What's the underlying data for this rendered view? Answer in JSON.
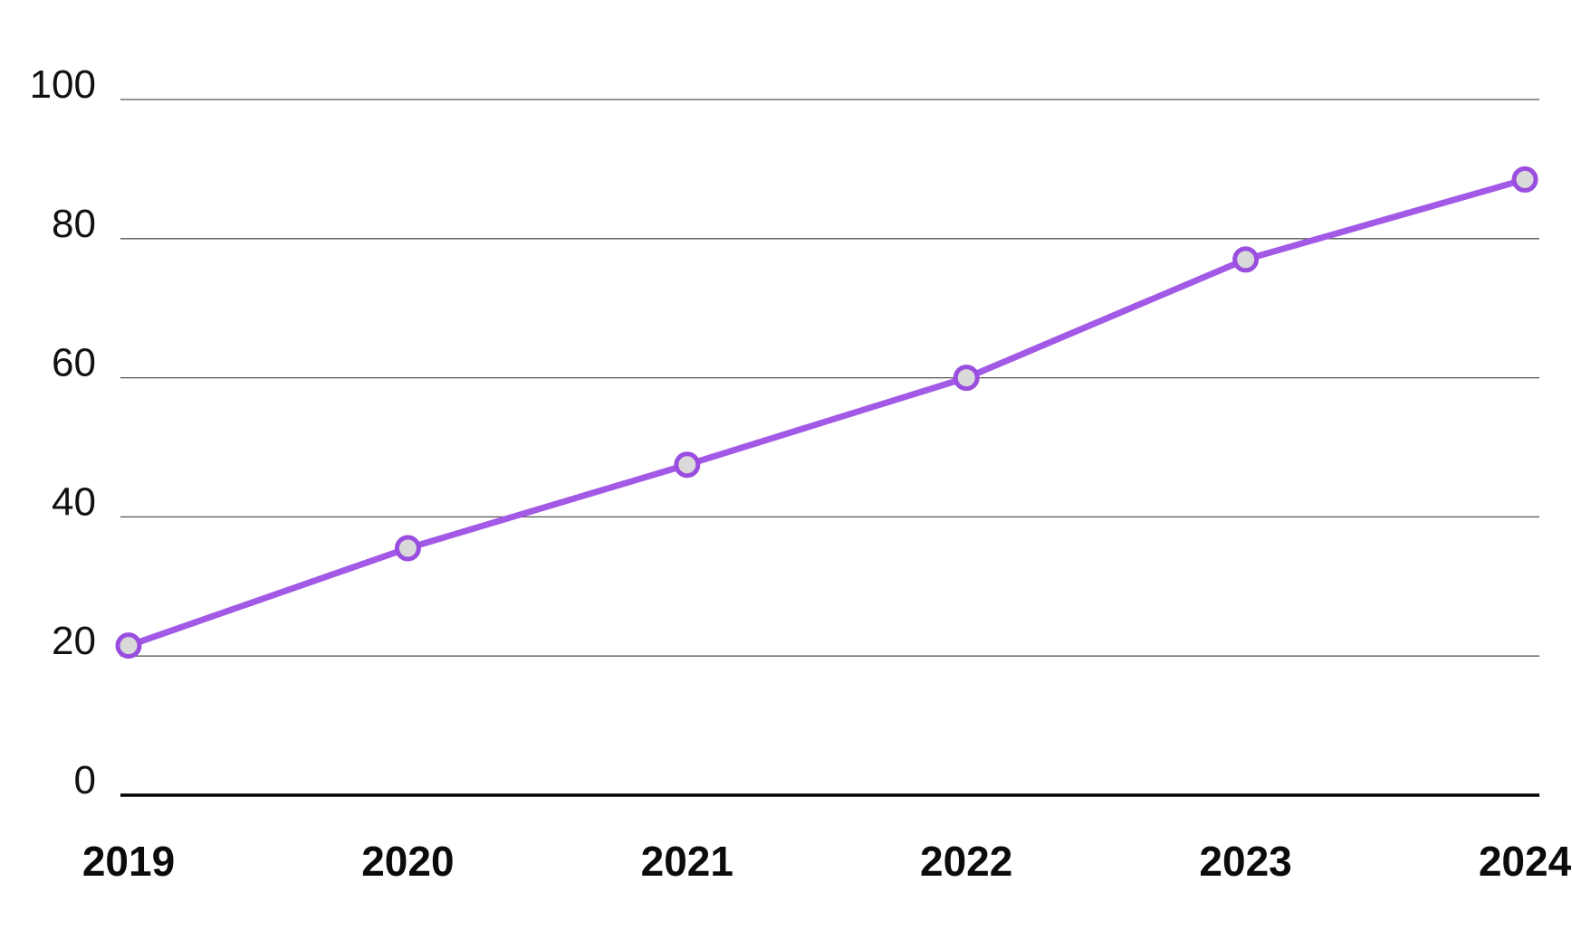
{
  "chart_data": {
    "type": "line",
    "categories": [
      "2019",
      "2020",
      "2021",
      "2022",
      "2023",
      "2024"
    ],
    "series": [
      {
        "values": [
          21.5,
          35.5,
          47.5,
          60,
          77,
          88.5
        ]
      }
    ],
    "y_ticks": [
      "0",
      "20",
      "40",
      "60",
      "80",
      "100"
    ],
    "ylim": [
      0,
      100
    ],
    "grid": true,
    "colors": {
      "line": "#a259e6",
      "marker_fill": "#d9d9d9",
      "marker_stroke": "#9a4ee0",
      "grid": "#555555",
      "baseline": "#000000"
    }
  }
}
